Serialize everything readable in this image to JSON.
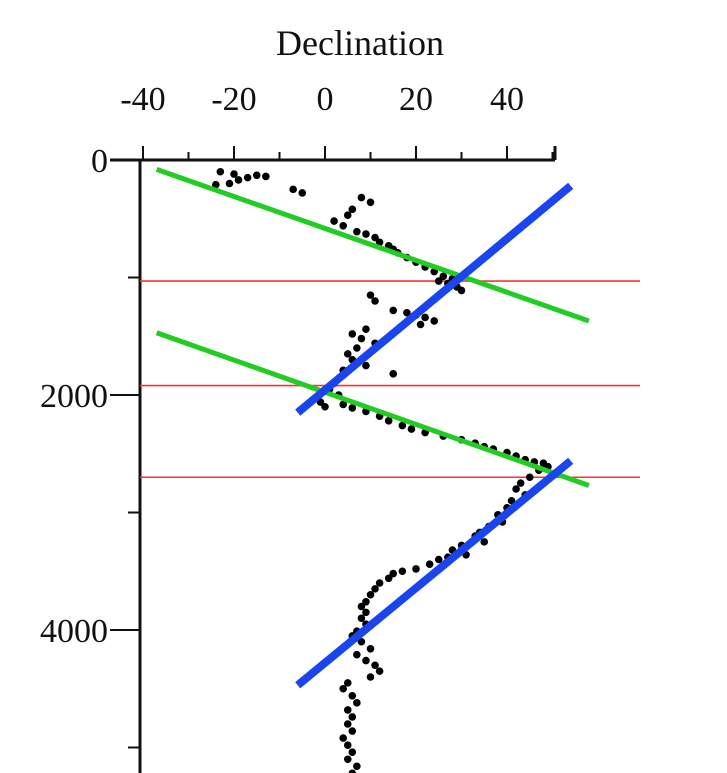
{
  "chart_data": {
    "type": "scatter",
    "title": "Declination",
    "xlabel": "",
    "ylabel": "",
    "x_ticks": [
      -40,
      -20,
      0,
      20,
      40
    ],
    "y_ticks": [
      0,
      2000,
      4000
    ],
    "xlim": [
      -40,
      50
    ],
    "ylim": [
      0,
      5300
    ],
    "y_inverted": true,
    "grid": false,
    "colors": {
      "points": "#000000",
      "axis": "#111111",
      "hline": "#ff3030",
      "green": "#22cc22",
      "blue": "#1a44ee"
    },
    "points": [
      [
        -23,
        100
      ],
      [
        -20,
        120
      ],
      [
        -19,
        170
      ],
      [
        -17,
        150
      ],
      [
        -21,
        200
      ],
      [
        -15,
        130
      ],
      [
        -24,
        210
      ],
      [
        -13,
        140
      ],
      [
        -7,
        250
      ],
      [
        -5,
        280
      ],
      [
        8,
        320
      ],
      [
        10,
        360
      ],
      [
        6,
        420
      ],
      [
        5,
        470
      ],
      [
        2,
        520
      ],
      [
        4,
        560
      ],
      [
        7,
        610
      ],
      [
        9,
        630
      ],
      [
        11,
        660
      ],
      [
        12,
        700
      ],
      [
        14,
        730
      ],
      [
        15,
        760
      ],
      [
        16,
        790
      ],
      [
        18,
        830
      ],
      [
        20,
        870
      ],
      [
        22,
        910
      ],
      [
        24,
        950
      ],
      [
        26,
        990
      ],
      [
        28,
        1010
      ],
      [
        25,
        1030
      ],
      [
        27,
        1050
      ],
      [
        29,
        1080
      ],
      [
        30,
        1110
      ],
      [
        10,
        1150
      ],
      [
        11,
        1200
      ],
      [
        15,
        1280
      ],
      [
        18,
        1300
      ],
      [
        20,
        1320
      ],
      [
        22,
        1340
      ],
      [
        24,
        1370
      ],
      [
        21,
        1400
      ],
      [
        9,
        1440
      ],
      [
        6,
        1480
      ],
      [
        8,
        1520
      ],
      [
        11,
        1560
      ],
      [
        7,
        1600
      ],
      [
        5,
        1650
      ],
      [
        6,
        1700
      ],
      [
        9,
        1750
      ],
      [
        4,
        1790
      ],
      [
        15,
        1820
      ],
      [
        3,
        1860
      ],
      [
        2,
        1900
      ],
      [
        1,
        1950
      ],
      [
        3,
        2000
      ],
      [
        -1,
        2060
      ],
      [
        0,
        2100
      ],
      [
        4,
        2080
      ],
      [
        6,
        2110
      ],
      [
        9,
        2140
      ],
      [
        12,
        2180
      ],
      [
        14,
        2220
      ],
      [
        17,
        2260
      ],
      [
        19,
        2290
      ],
      [
        22,
        2320
      ],
      [
        26,
        2350
      ],
      [
        30,
        2380
      ],
      [
        33,
        2410
      ],
      [
        35,
        2440
      ],
      [
        37,
        2460
      ],
      [
        40,
        2490
      ],
      [
        42,
        2520
      ],
      [
        44,
        2550
      ],
      [
        46,
        2570
      ],
      [
        48,
        2580
      ],
      [
        49,
        2610
      ],
      [
        47,
        2640
      ],
      [
        45,
        2700
      ],
      [
        43,
        2750
      ],
      [
        42,
        2800
      ],
      [
        44,
        2850
      ],
      [
        41,
        2900
      ],
      [
        40,
        2960
      ],
      [
        38,
        3020
      ],
      [
        39,
        3080
      ],
      [
        36,
        3120
      ],
      [
        34,
        3170
      ],
      [
        33,
        3200
      ],
      [
        35,
        3250
      ],
      [
        30,
        3280
      ],
      [
        28,
        3320
      ],
      [
        31,
        3360
      ],
      [
        27,
        3380
      ],
      [
        25,
        3400
      ],
      [
        23,
        3440
      ],
      [
        20,
        3480
      ],
      [
        17,
        3500
      ],
      [
        15,
        3520
      ],
      [
        14,
        3560
      ],
      [
        12,
        3600
      ],
      [
        11,
        3650
      ],
      [
        10,
        3700
      ],
      [
        9,
        3760
      ],
      [
        8,
        3800
      ],
      [
        9,
        3850
      ],
      [
        8,
        3900
      ],
      [
        9,
        3950
      ],
      [
        7,
        4010
      ],
      [
        6,
        4050
      ],
      [
        8,
        4100
      ],
      [
        10,
        4160
      ],
      [
        7,
        4210
      ],
      [
        9,
        4260
      ],
      [
        11,
        4300
      ],
      [
        12,
        4350
      ],
      [
        10,
        4400
      ],
      [
        5,
        4450
      ],
      [
        4,
        4500
      ],
      [
        6,
        4560
      ],
      [
        7,
        4620
      ],
      [
        5,
        4680
      ],
      [
        6,
        4740
      ],
      [
        5,
        4800
      ],
      [
        6,
        4860
      ],
      [
        4,
        4920
      ],
      [
        5,
        4980
      ],
      [
        6,
        5040
      ],
      [
        5,
        5100
      ],
      [
        7,
        5160
      ],
      [
        6,
        5220
      ]
    ],
    "horizontal_lines": [
      1030,
      1920,
      2700
    ],
    "trend_lines": [
      {
        "color": "green",
        "from": [
          -37,
          80
        ],
        "to": [
          58,
          1370
        ]
      },
      {
        "color": "green",
        "from": [
          -37,
          1470
        ],
        "to": [
          58,
          2770
        ]
      },
      {
        "color": "blue",
        "from": [
          -6,
          2150
        ],
        "to": [
          54,
          220
        ]
      },
      {
        "color": "blue",
        "from": [
          -6,
          4470
        ],
        "to": [
          54,
          2560
        ]
      }
    ]
  }
}
